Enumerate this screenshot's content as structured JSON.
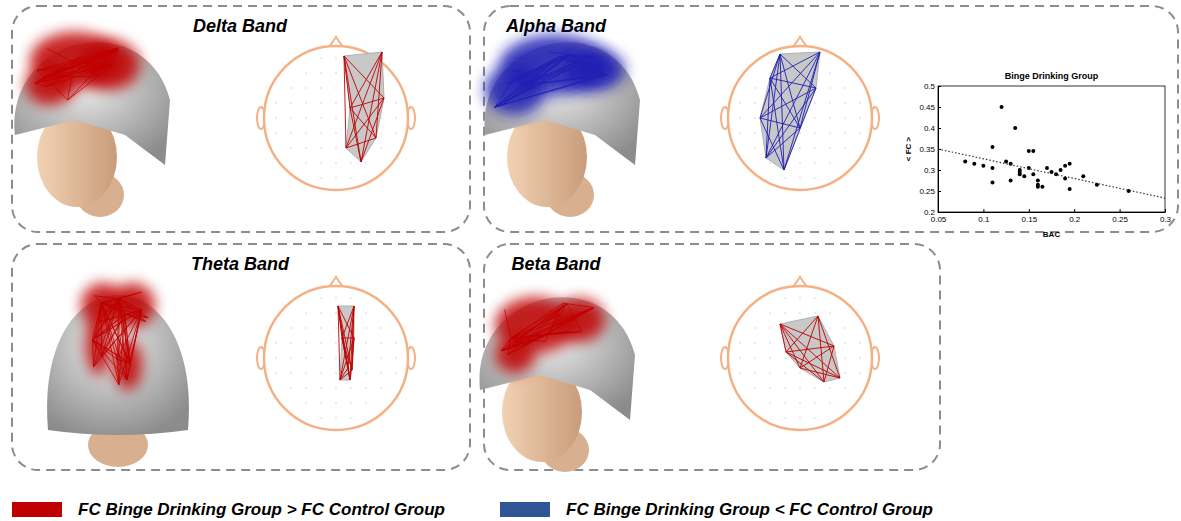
{
  "panels": [
    {
      "title": "Delta Band",
      "color": "#c00000"
    },
    {
      "title": "Alpha Band",
      "color": "#1f1fb4"
    },
    {
      "title": "Theta Band",
      "color": "#c00000"
    },
    {
      "title": "Beta Band",
      "color": "#c00000"
    }
  ],
  "legend_items": [
    {
      "label": "FC Binge Drinking Group > FC Control Group",
      "color": "#c00000"
    },
    {
      "label": "FC Binge Drinking Group < FC Control Group",
      "color": "#2f5597"
    }
  ],
  "chart_data": {
    "type": "scatter",
    "title": "Binge Drinking Group",
    "x_label": "BAC",
    "y_label": "< FC >",
    "xlim": [
      0.05,
      0.3
    ],
    "xticks": [
      0.05,
      0.1,
      0.15,
      0.2,
      0.25,
      0.3
    ],
    "ylim": [
      0.2,
      0.5
    ],
    "yticks": [
      0.2,
      0.25,
      0.3,
      0.35,
      0.4,
      0.45,
      0.5
    ],
    "grid": false,
    "series": [
      {
        "type": "scatter",
        "marker": "circle",
        "color": "#000000",
        "x": [
          0.08,
          0.09,
          0.1,
          0.11,
          0.11,
          0.11,
          0.12,
          0.125,
          0.13,
          0.13,
          0.135,
          0.14,
          0.14,
          0.14,
          0.145,
          0.15,
          0.15,
          0.155,
          0.155,
          0.16,
          0.16,
          0.16,
          0.165,
          0.17,
          0.175,
          0.18,
          0.185,
          0.19,
          0.19,
          0.195,
          0.195,
          0.21,
          0.225,
          0.26
        ],
        "values": [
          0.32,
          0.315,
          0.31,
          0.305,
          0.355,
          0.27,
          0.45,
          0.32,
          0.315,
          0.275,
          0.4,
          0.3,
          0.295,
          0.29,
          0.285,
          0.345,
          0.305,
          0.345,
          0.29,
          0.26,
          0.265,
          0.275,
          0.26,
          0.305,
          0.295,
          0.29,
          0.3,
          0.28,
          0.31,
          0.255,
          0.315,
          0.285,
          0.265,
          0.25
        ]
      },
      {
        "type": "line",
        "line_style": "dotted",
        "color": "#333333",
        "x": [
          0.05,
          0.3
        ],
        "values": [
          0.35,
          0.233
        ]
      }
    ]
  }
}
